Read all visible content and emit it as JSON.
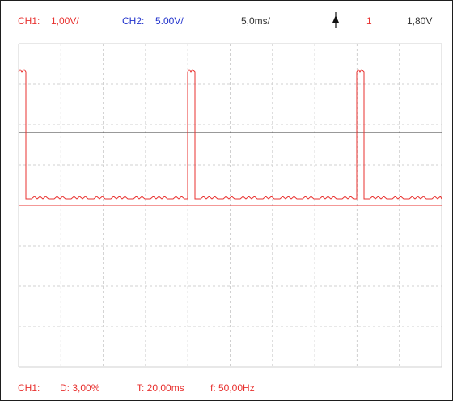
{
  "header": {
    "ch1_label": "CH1:",
    "ch1_scale": "1,00V/",
    "ch2_label": "CH2:",
    "ch2_scale": "5.00V/",
    "timebase": "5,0ms/",
    "trigger_icon": "trigger-rising-edge-icon",
    "trigger_channel": "1",
    "trigger_level": "1,80V"
  },
  "footer": {
    "channel": "CH1:",
    "duty": "D: 3,00%",
    "period": "T: 20,00ms",
    "frequency": "f: 50,00Hz"
  },
  "colors": {
    "ch1": "#e8312f",
    "ch2": "#2233cc",
    "grid": "#d0d0d0",
    "reference_line": "#333333"
  },
  "grid": {
    "divisions_x": 10,
    "divisions_y": 8
  }
}
